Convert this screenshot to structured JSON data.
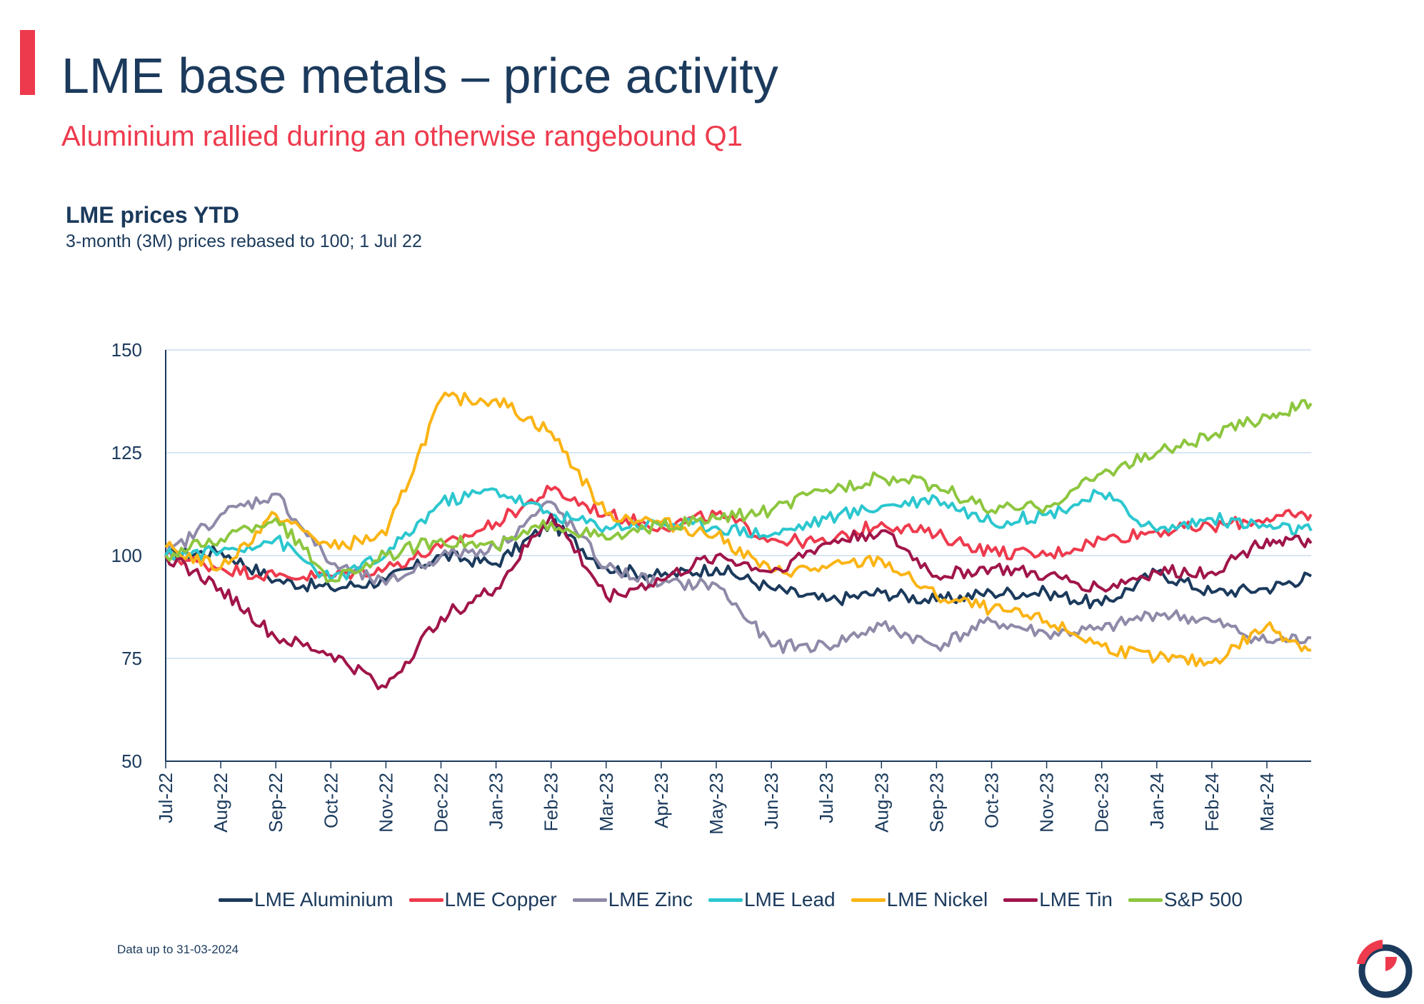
{
  "page": {
    "title": "LME base metals – price activity",
    "subtitle": "Aluminium rallied during an otherwise rangebound Q1",
    "footnote": "Data up to 31-03-2024"
  },
  "colors": {
    "accent": "#EE3A4D",
    "navy": "#1B3A5C",
    "grid": "#C9DDF0"
  },
  "chart_data": {
    "type": "line",
    "title": "LME prices YTD",
    "subtitle": "3-month (3M) prices rebased to 100; 1 Jul 22",
    "xlabel": "",
    "ylabel": "",
    "ylim": [
      50,
      150
    ],
    "yticks": [
      50,
      75,
      100,
      125,
      150
    ],
    "grid": true,
    "legend": "bottom",
    "x": [
      "Jul-22",
      "Aug-22",
      "Sep-22",
      "Oct-22",
      "Nov-22",
      "Dec-22",
      "Jan-23",
      "Feb-23",
      "Mar-23",
      "Apr-23",
      "May-23",
      "Jun-23",
      "Jul-23",
      "Aug-23",
      "Sep-23",
      "Oct-23",
      "Nov-23",
      "Dec-23",
      "Jan-24",
      "Feb-24",
      "Mar-24"
    ],
    "x_end_label": "31-03-2024",
    "series": [
      {
        "name": "LME Aluminium",
        "color": "#1B3A5C",
        "values": [
          100,
          101,
          94,
          92,
          94,
          100,
          98,
          108,
          97,
          95,
          97,
          92,
          89,
          91,
          89,
          91,
          91,
          88,
          96,
          91,
          92
        ],
        "end": 95
      },
      {
        "name": "LME Copper",
        "color": "#EE3A4D",
        "values": [
          100,
          97,
          95,
          95,
          97,
          102,
          108,
          116,
          110,
          107,
          110,
          104,
          103,
          108,
          105,
          101,
          100,
          104,
          106,
          107,
          109
        ],
        "end": 110
      },
      {
        "name": "LME Zinc",
        "color": "#8E8AA8",
        "values": [
          100,
          110,
          115,
          98,
          93,
          100,
          102,
          113,
          97,
          93,
          93,
          78,
          78,
          83,
          78,
          84,
          81,
          82,
          86,
          84,
          79
        ],
        "end": 80
      },
      {
        "name": "LME Lead",
        "color": "#2CC7CF",
        "values": [
          100,
          101,
          104,
          94,
          100,
          113,
          116,
          110,
          107,
          108,
          107,
          105,
          109,
          112,
          114,
          108,
          110,
          115,
          106,
          109,
          107
        ],
        "end": 106
      },
      {
        "name": "LME Nickel",
        "color": "#FBB414",
        "values": [
          102,
          97,
          110,
          102,
          105,
          138,
          138,
          130,
          110,
          108,
          105,
          96,
          97,
          99,
          90,
          87,
          84,
          78,
          75,
          74,
          83
        ],
        "end": 77
      },
      {
        "name": "LME Tin",
        "color": "#A0154A",
        "values": [
          100,
          92,
          80,
          76,
          68,
          85,
          92,
          110,
          90,
          94,
          100,
          96,
          103,
          106,
          95,
          97,
          95,
          92,
          96,
          96,
          104
        ],
        "end": 103
      },
      {
        "name": "S&P 500",
        "color": "#8DC63F",
        "values": [
          100,
          104,
          109,
          94,
          100,
          104,
          102,
          108,
          104,
          107,
          109,
          111,
          116,
          119,
          117,
          111,
          112,
          120,
          125,
          129,
          134
        ],
        "end": 137
      }
    ]
  }
}
